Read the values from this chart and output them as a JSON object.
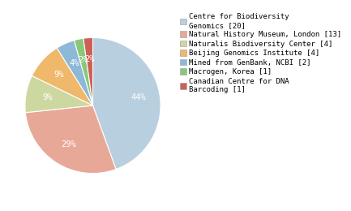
{
  "labels": [
    "Centre for Biodiversity\nGenomics [20]",
    "Natural History Museum, London [13]",
    "Naturalis Biodiversity Center [4]",
    "Beijing Genomics Institute [4]",
    "Mined from GenBank, NCBI [2]",
    "Macrogen, Korea [1]",
    "Canadian Centre for DNA\nBarcoding [1]"
  ],
  "values": [
    20,
    13,
    4,
    4,
    2,
    1,
    1
  ],
  "colors": [
    "#b8cfe0",
    "#e8a898",
    "#cdd8a0",
    "#f0b86a",
    "#8db8d8",
    "#88c878",
    "#cc6055"
  ],
  "background_color": "#ffffff",
  "fontsize": 6.5,
  "legend_fontsize": 6.5,
  "wedge_edge_color": "#ffffff",
  "pct_fontsize": 7.5
}
